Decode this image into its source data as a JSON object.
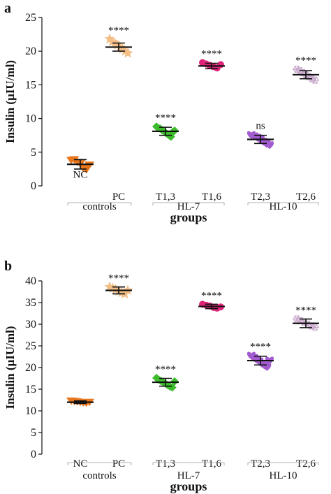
{
  "chart_data": [
    {
      "panel": "a",
      "type": "scatter",
      "ylabel": "Insulin (µIU/ml)",
      "xlabel": "groups",
      "ylim": [
        0,
        25
      ],
      "yticks": [
        0,
        5,
        10,
        15,
        20,
        25
      ],
      "categories": [
        "NC",
        "PC",
        "T1,3",
        "T1,6",
        "T2,3",
        "T2,6"
      ],
      "brackets": [
        {
          "label": "controls",
          "from": 0,
          "to": 1
        },
        {
          "label": "HL-7",
          "from": 2,
          "to": 3
        },
        {
          "label": "HL-10",
          "from": 4,
          "to": 5
        }
      ],
      "series": [
        {
          "category": "NC",
          "marker": "triangle-down",
          "color": "#e8761c",
          "mean": 3.2,
          "sd": 0.7,
          "label_inside": true,
          "significance": "",
          "points": [
            3.8,
            3.9,
            3.5,
            3.3,
            2.6,
            2.4,
            3.1
          ]
        },
        {
          "category": "PC",
          "marker": "star",
          "color": "#f2be86",
          "mean": 20.6,
          "sd": 0.6,
          "label_inside": false,
          "significance": "****",
          "points": [
            21.8,
            21.4,
            21.2,
            20.9,
            20.6,
            20.3,
            20.0,
            19.7
          ]
        },
        {
          "category": "T1,3",
          "marker": "diamond",
          "color": "#3dbb2c",
          "mean": 8.1,
          "sd": 0.6,
          "label_inside": false,
          "significance": "****",
          "points": [
            8.8,
            8.6,
            8.5,
            8.3,
            8.1,
            7.9,
            7.7,
            7.5,
            7.3,
            8.0,
            8.2
          ]
        },
        {
          "category": "T1,6",
          "marker": "circle",
          "color": "#e0247a",
          "mean": 17.8,
          "sd": 0.4,
          "label_inside": false,
          "significance": "****",
          "points": [
            18.3,
            18.1,
            17.9,
            17.7,
            17.5,
            18.0
          ]
        },
        {
          "category": "T2,3",
          "marker": "heart",
          "color": "#a35bd0",
          "mean": 6.9,
          "sd": 0.6,
          "label_inside": false,
          "significance": "ns",
          "points": [
            7.6,
            7.4,
            7.2,
            6.9,
            6.6,
            6.3,
            6.1
          ]
        },
        {
          "category": "T2,6",
          "marker": "snowflake",
          "color": "#c9a9cc",
          "mean": 16.5,
          "sd": 0.6,
          "label_inside": false,
          "significance": "****",
          "points": [
            17.3,
            17.1,
            16.8,
            16.5,
            16.2,
            15.9,
            15.7
          ]
        }
      ]
    },
    {
      "panel": "b",
      "type": "scatter",
      "ylabel": "Insulin (µIU/ml)",
      "xlabel": "groups",
      "ylim": [
        0,
        40
      ],
      "yticks": [
        0,
        5,
        10,
        15,
        20,
        25,
        30,
        35,
        40
      ],
      "categories": [
        "NC",
        "PC",
        "T1,3",
        "T1,6",
        "T2,3",
        "T2,6"
      ],
      "brackets": [
        {
          "label": "controls",
          "from": 0,
          "to": 1
        },
        {
          "label": "HL-7",
          "from": 2,
          "to": 3
        },
        {
          "label": "HL-10",
          "from": 4,
          "to": 5
        }
      ],
      "series": [
        {
          "category": "NC",
          "marker": "triangle-down",
          "color": "#e8761c",
          "mean": 12.0,
          "sd": 0.3,
          "label_inside": false,
          "significance": "",
          "points": [
            12.3,
            12.2,
            12.1,
            12.0,
            11.9,
            11.8,
            12.0
          ]
        },
        {
          "category": "PC",
          "marker": "star",
          "color": "#f2be86",
          "mean": 37.8,
          "sd": 0.8,
          "label_inside": false,
          "significance": "****",
          "points": [
            38.6,
            38.3,
            38.0,
            37.6,
            37.3,
            37.0,
            37.8
          ]
        },
        {
          "category": "T1,3",
          "marker": "diamond",
          "color": "#3dbb2c",
          "mean": 16.6,
          "sd": 0.9,
          "label_inside": false,
          "significance": "****",
          "points": [
            17.6,
            17.2,
            16.9,
            16.6,
            16.3,
            15.9,
            15.6,
            15.4,
            16.8
          ]
        },
        {
          "category": "T1,6",
          "marker": "circle",
          "color": "#e0247a",
          "mean": 34.1,
          "sd": 0.5,
          "label_inside": false,
          "significance": "****",
          "points": [
            34.6,
            34.4,
            34.2,
            33.9,
            33.7,
            34.0
          ]
        },
        {
          "category": "T2,3",
          "marker": "heart",
          "color": "#a35bd0",
          "mean": 21.6,
          "sd": 1.0,
          "label_inside": false,
          "significance": "****",
          "points": [
            22.8,
            22.3,
            21.9,
            21.5,
            21.0,
            20.6,
            20.2,
            21.7
          ]
        },
        {
          "category": "T2,6",
          "marker": "snowflake",
          "color": "#c9a9cc",
          "mean": 30.2,
          "sd": 1.0,
          "label_inside": false,
          "significance": "****",
          "points": [
            31.2,
            30.8,
            30.4,
            30.0,
            29.6,
            29.3
          ]
        }
      ]
    }
  ]
}
